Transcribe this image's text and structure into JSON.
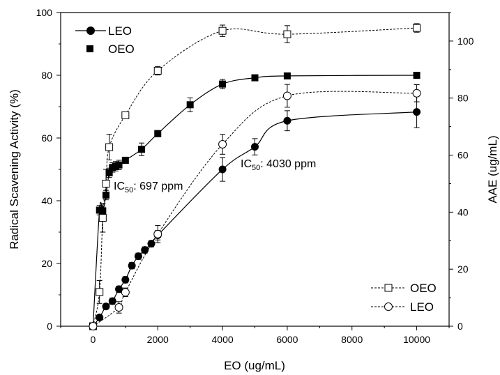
{
  "chart_data": {
    "type": "line",
    "xlabel": "EO (ug/mL)",
    "ylabel": "Radical Scavening Activity (%)",
    "y2label": "AAE (ug/mL)",
    "xlim": [
      -1000,
      11000
    ],
    "ylim": [
      0,
      100
    ],
    "y2lim": [
      0,
      110
    ],
    "xticks": [
      0,
      2000,
      4000,
      6000,
      8000,
      10000
    ],
    "yticks": [
      0,
      20,
      40,
      60,
      80,
      100
    ],
    "y2ticks": [
      0,
      20,
      40,
      60,
      80,
      100
    ],
    "legend_left": [
      "LEO",
      "OEO"
    ],
    "legend_right": [
      "OEO",
      "LEO"
    ],
    "annotations": [
      {
        "prefix": "IC",
        "sub": "50",
        "suffix": ": 697 ppm"
      },
      {
        "prefix": "IC",
        "sub": "50",
        "suffix": ": 4030 ppm"
      }
    ],
    "series": [
      {
        "name": "LEO",
        "axis": "left",
        "marker": "circle-filled",
        "line": "solid",
        "x": [
          0,
          200,
          400,
          600,
          800,
          1000,
          1200,
          1400,
          1600,
          1800,
          2000,
          4000,
          5000,
          6000,
          10000
        ],
        "y": [
          0,
          2.8,
          6.3,
          8.0,
          11.8,
          14.8,
          19.3,
          22.3,
          24.3,
          26.3,
          29.0,
          50.0,
          57.2,
          65.5,
          68.3
        ],
        "err": [
          0,
          0.5,
          0.8,
          1.0,
          1.0,
          1.0,
          1.0,
          1.0,
          1.0,
          1.0,
          1.5,
          3.8,
          2.6,
          3.2,
          5.0
        ]
      },
      {
        "name": "OEO",
        "axis": "left",
        "marker": "square-filled",
        "line": "solid",
        "x": [
          0,
          200,
          300,
          400,
          500,
          600,
          700,
          800,
          1000,
          1500,
          2000,
          3000,
          4000,
          5000,
          6000,
          10000
        ],
        "y": [
          0,
          37.0,
          36.8,
          41.8,
          48.9,
          50.6,
          51.0,
          51.4,
          52.9,
          56.4,
          61.4,
          70.6,
          77.2,
          79.2,
          79.8,
          80.0
        ],
        "err": [
          0,
          1.5,
          1.5,
          1.5,
          1.5,
          1.5,
          1.5,
          1.5,
          1.0,
          2.0,
          1.0,
          2.2,
          1.5,
          0.8,
          0.8,
          1.0
        ]
      },
      {
        "name": "OEO",
        "axis": "right",
        "marker": "square-open",
        "line": "dashed",
        "x": [
          0,
          200,
          300,
          400,
          500,
          1000,
          2000,
          4000,
          6000,
          10000
        ],
        "y": [
          0,
          12.0,
          38.0,
          50.0,
          62.8,
          74.0,
          89.6,
          103.6,
          102.4,
          104.6
        ],
        "err": [
          0,
          4.0,
          5.0,
          5.0,
          4.5,
          1.0,
          1.5,
          2.0,
          3.0,
          1.5
        ]
      },
      {
        "name": "LEO",
        "axis": "right",
        "marker": "circle-open",
        "line": "dashed",
        "x": [
          0,
          800,
          1000,
          2000,
          4000,
          6000,
          10000
        ],
        "y": [
          0,
          6.6,
          11.9,
          32.3,
          63.8,
          80.8,
          81.7
        ],
        "err": [
          0,
          2.0,
          1.5,
          3.0,
          3.5,
          4.0,
          3.0
        ]
      }
    ]
  }
}
